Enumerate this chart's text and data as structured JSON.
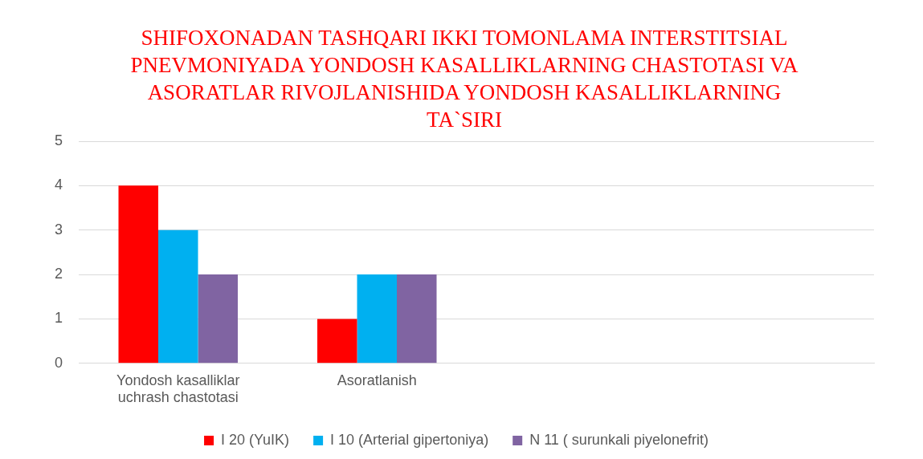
{
  "chart_data": {
    "type": "bar",
    "title": "SHIFOXONADAN TASHQARI IKKI TOMONLAMA INTERSTITSIAL PNEVMONIYADA YONDOSH KASALLIKLARNING CHASTOTASI VA ASORATLAR RIVOJLANISHIDA  YONDOSH KASALLIKLARNING TA`SIRI",
    "categories": [
      "Yondosh kasalliklar uchrash chastotasi",
      "Asoratlanish",
      null,
      null
    ],
    "series": [
      {
        "name": "I 20 (YuIK)",
        "color": "#ff0000",
        "values": [
          4,
          1,
          null,
          null
        ]
      },
      {
        "name": "I 10 (Arterial gipertoniya)",
        "color": "#00b0f0",
        "values": [
          3,
          2,
          null,
          null
        ]
      },
      {
        "name": "N 11 ( surunkali piyelonefrit)",
        "color": "#8064a2",
        "values": [
          2,
          2,
          null,
          null
        ]
      }
    ],
    "ylim": [
      0,
      5
    ],
    "yticks": [
      0,
      1,
      2,
      3,
      4,
      5
    ],
    "grid": "y",
    "legend": "bottom"
  }
}
